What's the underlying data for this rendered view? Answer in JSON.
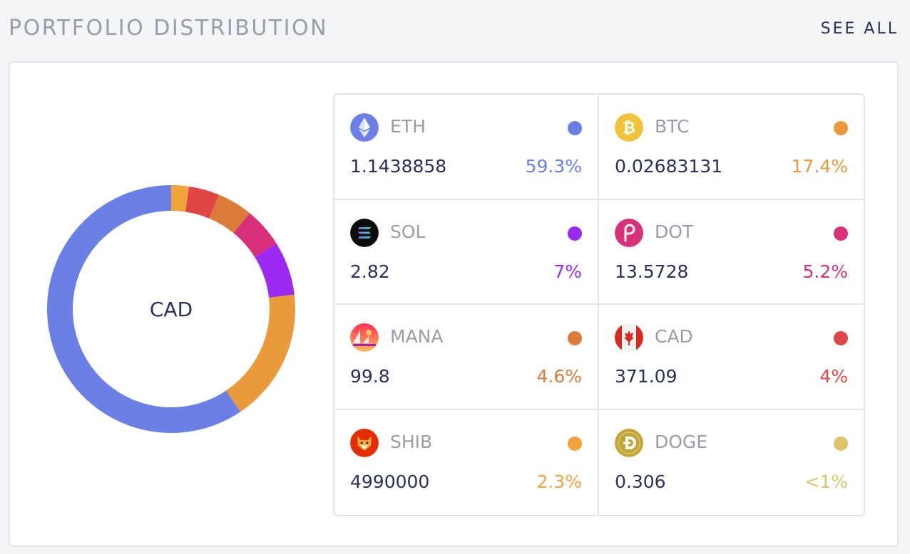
{
  "header": {
    "title": "PORTFOLIO DISTRIBUTION",
    "see_all_label": "SEE ALL"
  },
  "donut": {
    "center_label": "CAD"
  },
  "chart_data": {
    "type": "pie",
    "variant": "donut",
    "slices": [
      {
        "label": "ETH",
        "value": 59.3,
        "color": "#6b80e6"
      },
      {
        "label": "BTC",
        "value": 17.4,
        "color": "#eb9a3b"
      },
      {
        "label": "SOL",
        "value": 7,
        "color": "#9c2bf2"
      },
      {
        "label": "DOT",
        "value": 5.2,
        "color": "#d8307a"
      },
      {
        "label": "MANA",
        "value": 4.6,
        "color": "#dc7a3a"
      },
      {
        "label": "CAD",
        "value": 4,
        "color": "#e04646"
      },
      {
        "label": "SHIB",
        "value": 2.3,
        "color": "#f2a43c"
      }
    ]
  },
  "assets": [
    {
      "symbol": "ETH",
      "amount": "1.1438858",
      "percent": "59.3%",
      "color": "#6b80e6",
      "icon": "eth-icon"
    },
    {
      "symbol": "BTC",
      "amount": "0.02683131",
      "percent": "17.4%",
      "color": "#eb9a3b",
      "icon": "btc-icon"
    },
    {
      "symbol": "SOL",
      "amount": "2.82",
      "percent": "7%",
      "color": "#9c2bf2",
      "icon": "sol-icon"
    },
    {
      "symbol": "DOT",
      "amount": "13.5728",
      "percent": "5.2%",
      "color": "#d8307a",
      "icon": "dot-icon"
    },
    {
      "symbol": "MANA",
      "amount": "99.8",
      "percent": "4.6%",
      "color": "#dc7a3a",
      "icon": "mana-icon"
    },
    {
      "symbol": "CAD",
      "amount": "371.09",
      "percent": "4%",
      "color": "#e04646",
      "icon": "cad-flag-icon"
    },
    {
      "symbol": "SHIB",
      "amount": "4990000",
      "percent": "2.3%",
      "color": "#f2a43c",
      "icon": "shib-icon"
    },
    {
      "symbol": "DOGE",
      "amount": "0.306",
      "percent": "<1%",
      "color": "#dbc46a",
      "icon": "doge-icon"
    }
  ]
}
